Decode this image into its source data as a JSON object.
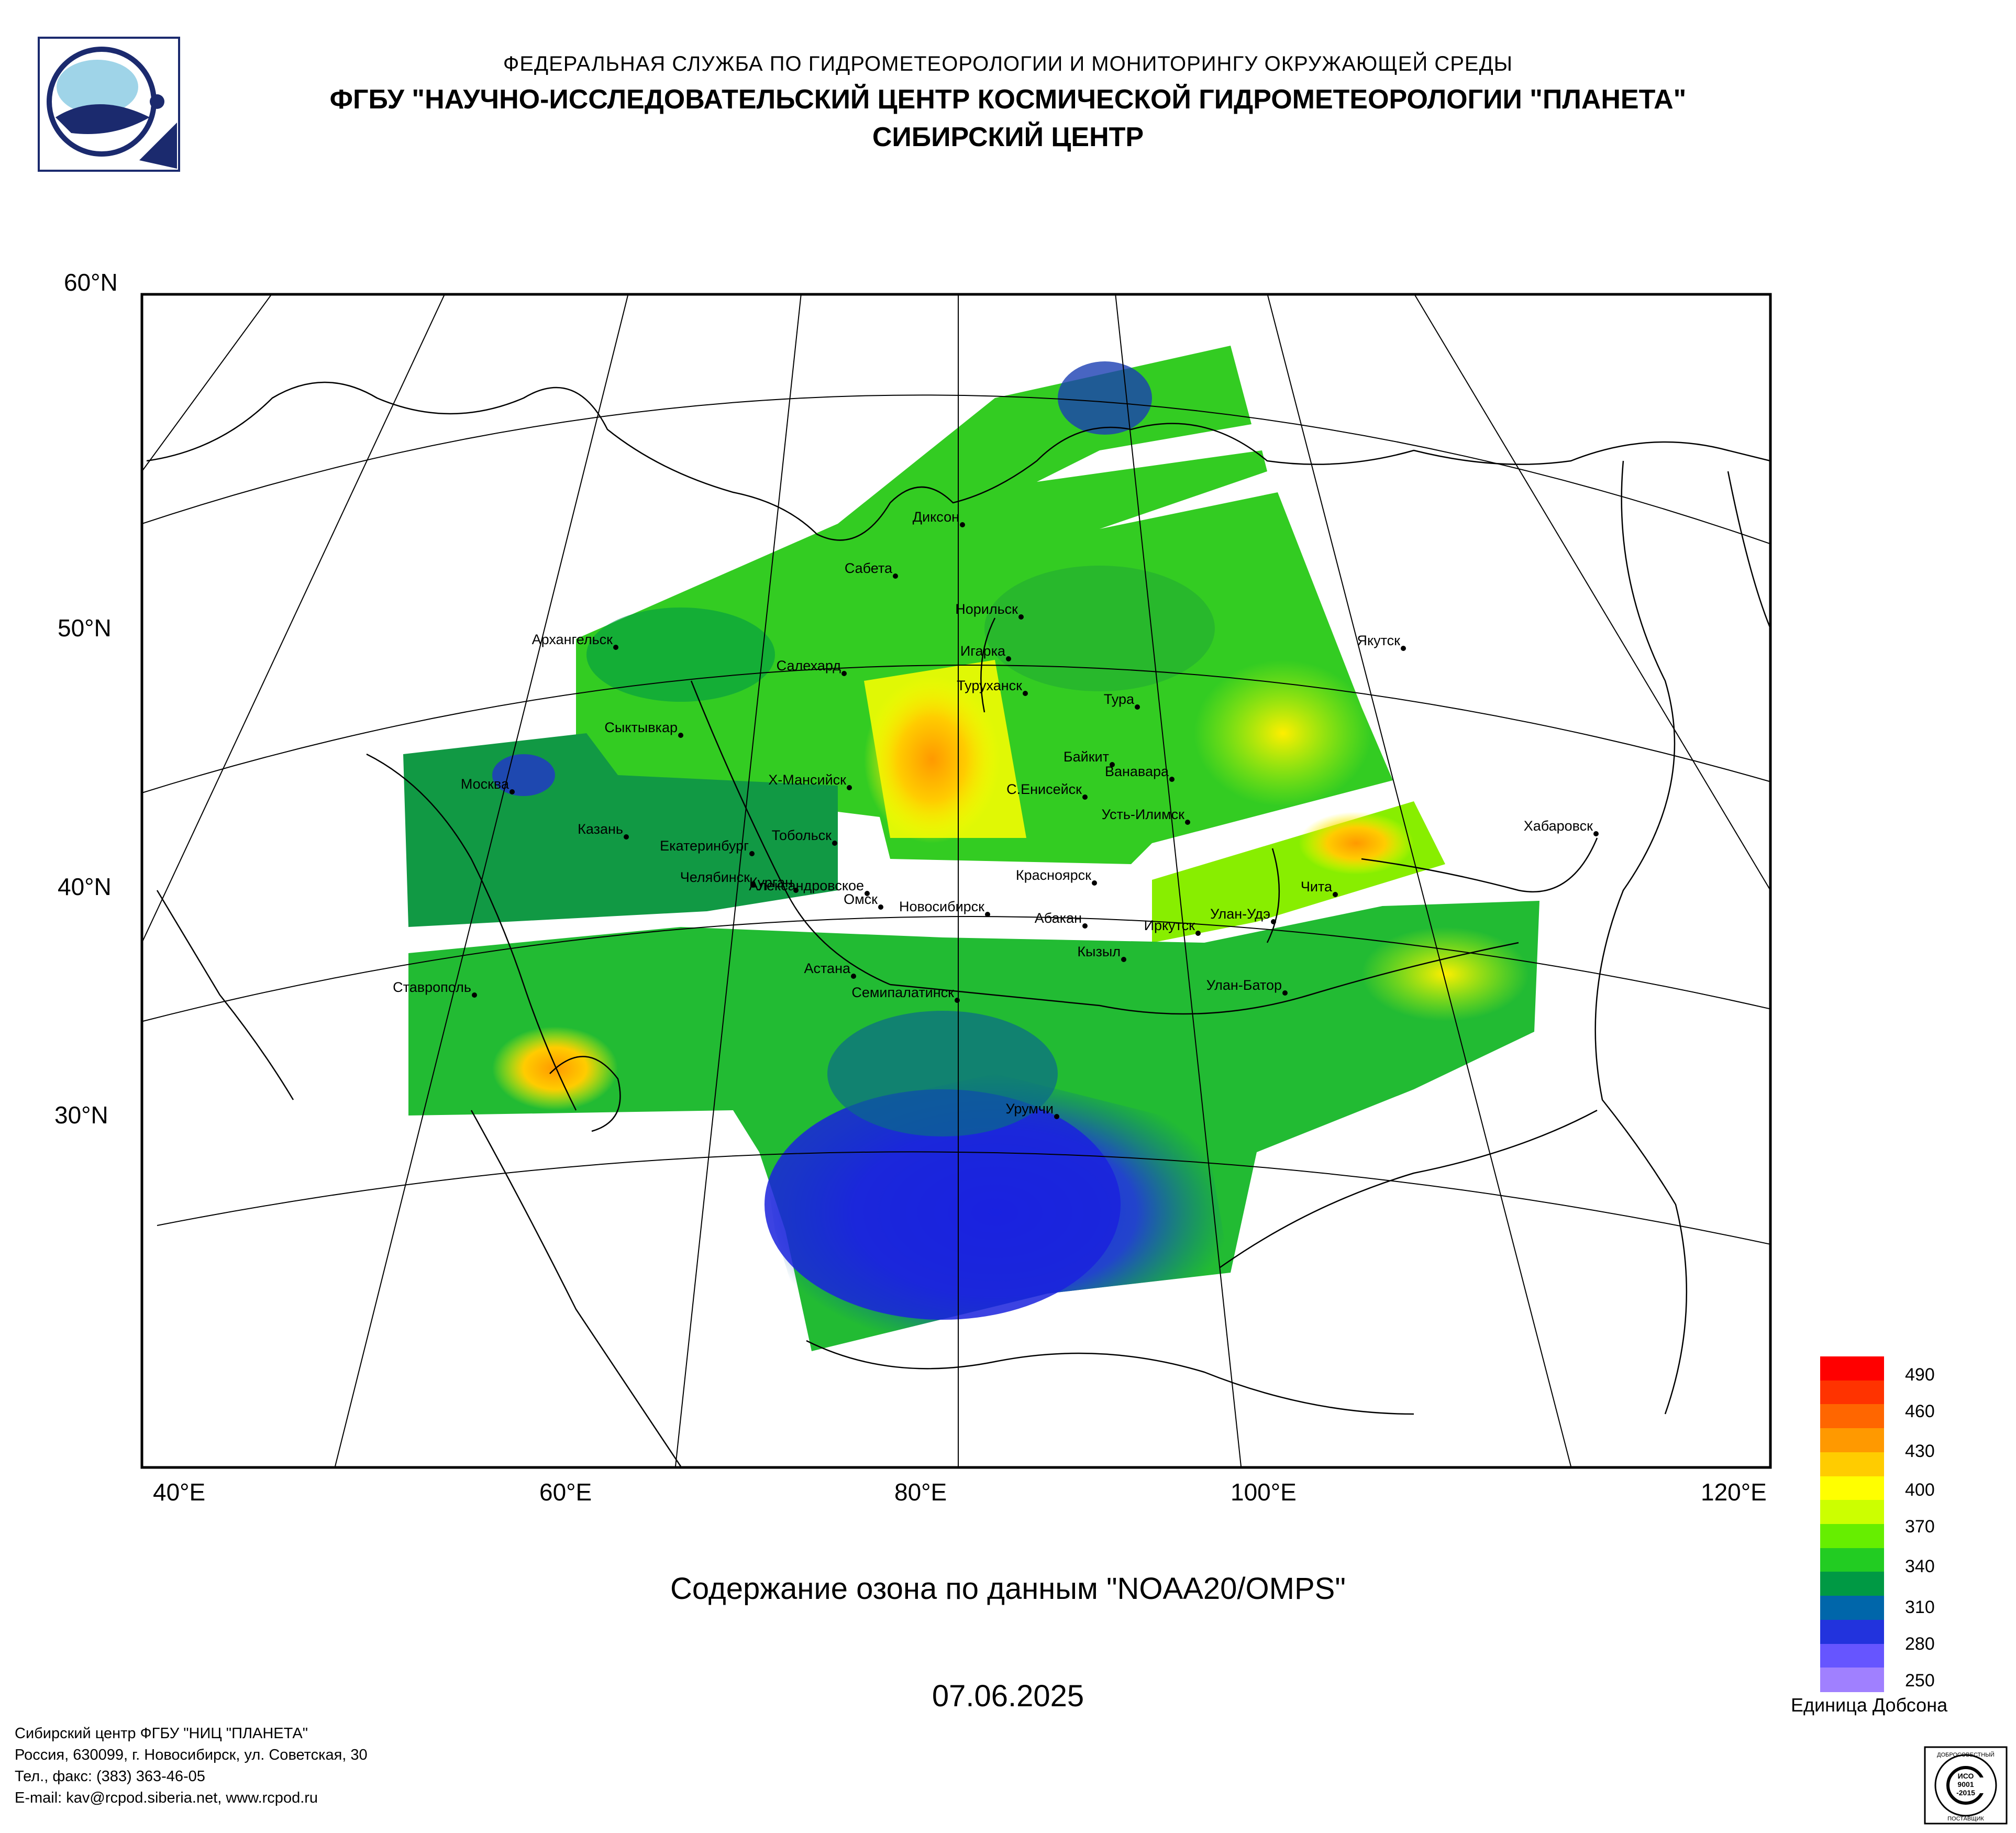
{
  "header": {
    "agency": "ФЕДЕРАЛЬНАЯ СЛУЖБА ПО ГИДРОМЕТЕОРОЛОГИИ И МОНИТОРИНГУ ОКРУЖАЮЩЕЙ СРЕДЫ",
    "institute": "ФГБУ \"НАУЧНО-ИССЛЕДОВАТЕЛЬСКИЙ ЦЕНТР КОСМИЧЕСКОЙ ГИДРОМЕТЕОРОЛОГИИ \"ПЛАНЕТА\"",
    "center": "СИБИРСКИЙ ЦЕНТР"
  },
  "map": {
    "latitude_labels": [
      "60°N",
      "50°N",
      "40°N",
      "30°N"
    ],
    "longitude_labels": [
      "40°E",
      "60°E",
      "80°E",
      "100°E",
      "120°E"
    ],
    "cities": [
      "Диксон",
      "Сабета",
      "Норильск",
      "Архангельск",
      "Салехард",
      "Игарка",
      "Туруханск",
      "Тура",
      "Якутск",
      "Сыктывкар",
      "Байкит",
      "Ванавара",
      "Москва",
      "Х-Мансийск",
      "С.Енисейск",
      "Усть-Илимск",
      "Казань",
      "Тобольск",
      "Екатеринбург",
      "Хабаровск",
      "Челябинск",
      "Курган",
      "Александровское",
      "Красноярск",
      "Омск",
      "Новосибирск",
      "Абакан",
      "Улан-Удэ",
      "Чита",
      "Иркутск",
      "Астана",
      "Кызыл",
      "Ставрополь",
      "Семипалатинск",
      "Улан-Батор",
      "Урумчи"
    ]
  },
  "caption": "Содержание озона по данным \"NOAA20/OMPS\"",
  "date": "07.06.2025",
  "legend": {
    "unit": "Единица Добсона",
    "ticks": [
      "490",
      "460",
      "430",
      "400",
      "370",
      "340",
      "310",
      "280",
      "250"
    ],
    "colors": [
      "#ff0000",
      "#ff3300",
      "#ff6600",
      "#ff9900",
      "#ffcc00",
      "#ffff00",
      "#ccff00",
      "#66ee00",
      "#22cc22",
      "#009944",
      "#0066aa",
      "#2233dd",
      "#6655ff",
      "#a080ff"
    ]
  },
  "footer": {
    "line1": "Сибирский центр ФГБУ \"НИЦ \"ПЛАНЕТА\"",
    "line2": "Россия, 630099, г. Новосибирск, ул. Советская, 30",
    "line3": "Тел., факс: (383) 363-46-05",
    "line4": "E-mail: kav@rcpod.siberia.net, www.rcpod.ru"
  },
  "badge": {
    "top": "ДОБРОСОВЕСТНЫЙ",
    "iso": "ИСО",
    "code1": "9001",
    "code2": "-2015",
    "bottom": "ПОСТАВЩИК"
  }
}
